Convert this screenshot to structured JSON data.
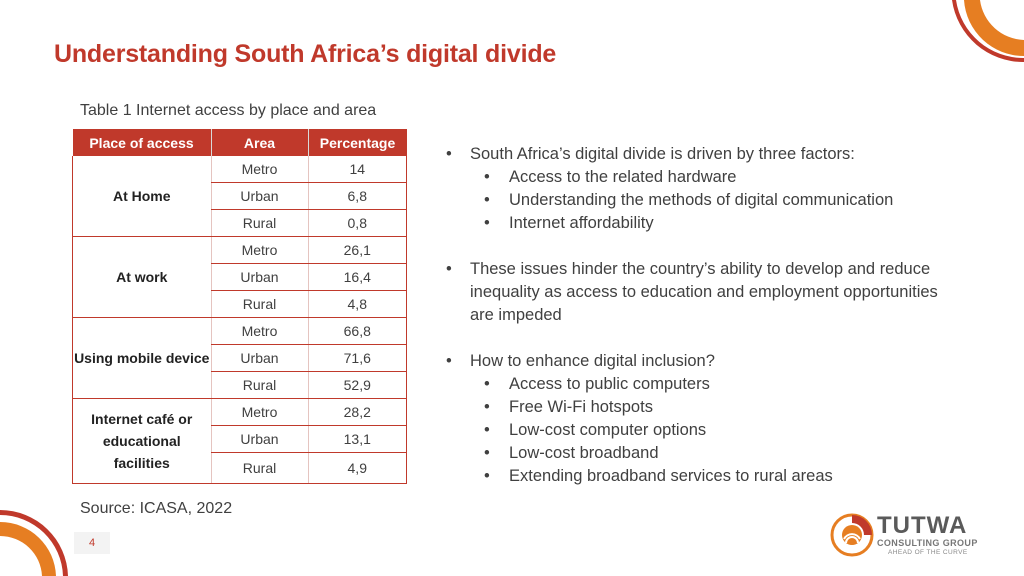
{
  "title": "Understanding South Africa’s digital divide",
  "table": {
    "caption": "Table 1 Internet access by place and area",
    "headers": [
      "Place of access",
      "Area",
      "Percentage"
    ],
    "groups": [
      {
        "place": "At Home",
        "rows": [
          {
            "area": "Metro",
            "pct": "14"
          },
          {
            "area": "Urban",
            "pct": "6,8"
          },
          {
            "area": "Rural",
            "pct": "0,8"
          }
        ]
      },
      {
        "place": "At work",
        "rows": [
          {
            "area": "Metro",
            "pct": "26,1"
          },
          {
            "area": "Urban",
            "pct": "16,4"
          },
          {
            "area": "Rural",
            "pct": "4,8"
          }
        ]
      },
      {
        "place": "Using mobile device",
        "rows": [
          {
            "area": "Metro",
            "pct": "66,8"
          },
          {
            "area": "Urban",
            "pct": "71,6"
          },
          {
            "area": "Rural",
            "pct": "52,9"
          }
        ]
      },
      {
        "place": "Internet café or educational facilities",
        "rows": [
          {
            "area": "Metro",
            "pct": "28,2"
          },
          {
            "area": "Urban",
            "pct": "13,1"
          },
          {
            "area": "Rural",
            "pct": "4,9"
          }
        ]
      }
    ],
    "source": "Source: ICASA, 2022"
  },
  "bullets": [
    {
      "text": "South Africa’s digital divide is driven by three factors:",
      "sub": [
        "Access to the related hardware",
        "Understanding the methods of digital communication",
        "Internet affordability"
      ]
    },
    {
      "text": "These issues hinder the country’s ability to develop and reduce inequality as access to education and employment opportunities are impeded",
      "sub": []
    },
    {
      "text": "How to enhance digital inclusion?",
      "sub": [
        "Access to public computers",
        "Free Wi-Fi hotspots",
        "Low-cost computer options",
        "Low-cost broadband",
        "Extending broadband services to rural areas"
      ]
    }
  ],
  "page_number": "4",
  "logo": {
    "name": "TUTWA",
    "sub": "CONSULTING GROUP",
    "tagline": "AHEAD OF THE CURVE"
  },
  "colors": {
    "accent": "#c0392b",
    "orange": "#e67e22",
    "text": "#404040"
  }
}
